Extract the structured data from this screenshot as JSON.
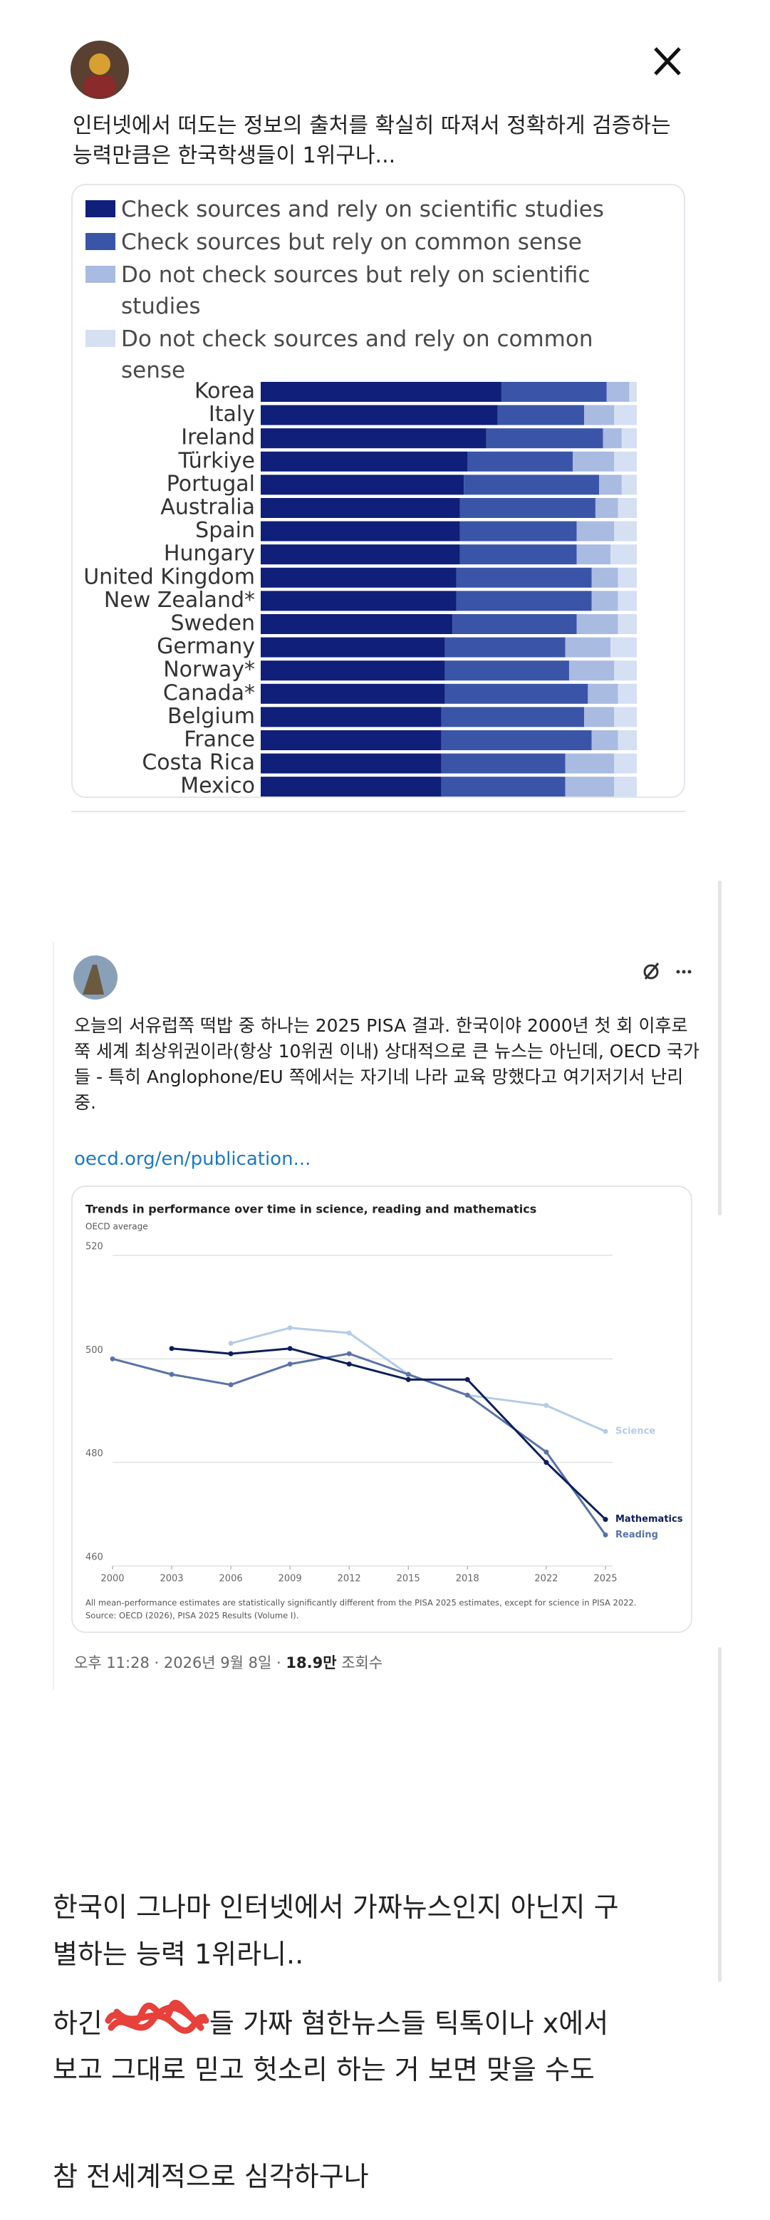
{
  "post1": {
    "text": "인터넷에서 떠도는 정보의 출처를 확실히 따져서 정확하게 검증하는 능력만큼은 한국학생들이 1위구나..."
  },
  "post2": {
    "text": "오늘의 서유럽쪽 떡밥 중 하나는 2025 PISA 결과. 한국이야 2000년 첫 회 이후로 쭉 세계 최상위권이라(항상 10위권 이내) 상대적으로 큰 뉴스는 아닌데, OECD 국가들 - 특히 Anglophone/EU 쪽에서는 자기네 나라 교육 망했다고 여기저기서 난리중.",
    "link": "oecd.org/en/publication...",
    "meta": {
      "datetime": "오후 11:28 · 2026년 9월 8일 ·",
      "views": "18.9만",
      "views_label": "조회수"
    }
  },
  "body": {
    "p1": [
      "한국이 그나마 인터넷에서 가짜뉴스인지 아닌지 구",
      "별하는 능력 1위라니.."
    ],
    "p2a": "하긴",
    "p2b": "들 가짜 혐한뉴스들 틱톡이나 x에서",
    "p2c": "보고 그대로 믿고 헛소리 하는 거 보면 맞을 수도",
    "p3": "참 전세계적으로 심각하구나"
  },
  "chart_data": [
    {
      "type": "hbar_stacked",
      "categories": [
        "Korea",
        "Italy",
        "Ireland",
        "Türkiye",
        "Portugal",
        "Australia",
        "Spain",
        "Hungary",
        "United Kingdom",
        "New Zealand*",
        "Sweden",
        "Germany",
        "Norway*",
        "Canada*",
        "Belgium",
        "France",
        "Costa Rica",
        "Mexico"
      ],
      "xlim": [
        0,
        100
      ],
      "series": [
        {
          "name": "Check sources and rely on scientific studies",
          "color": "#0f1f7a",
          "values": [
            64,
            63,
            60,
            55,
            54,
            53,
            53,
            53,
            52,
            52,
            51,
            49,
            49,
            49,
            48,
            48,
            48,
            48
          ]
        },
        {
          "name": "Check sources but rely on common sense",
          "color": "#3a55a8",
          "values": [
            28,
            23,
            31,
            28,
            36,
            36,
            31,
            31,
            36,
            36,
            33,
            32,
            33,
            38,
            38,
            40,
            33,
            33
          ]
        },
        {
          "name": "Do not check sources but rely on scientific studies",
          "color": "#a9bbe0",
          "values": [
            6,
            8,
            5,
            11,
            6,
            6,
            10,
            9,
            7,
            7,
            11,
            12,
            12,
            8,
            8,
            7,
            13,
            13
          ]
        },
        {
          "name": "Do not check sources and rely on common sense",
          "color": "#d5e0f3",
          "values": [
            2,
            6,
            4,
            6,
            4,
            5,
            6,
            7,
            5,
            5,
            5,
            7,
            6,
            5,
            6,
            5,
            6,
            6
          ]
        }
      ]
    },
    {
      "type": "line",
      "title": "Trends in performance over time in science, reading and mathematics",
      "subtitle": "OECD average",
      "x": [
        2000,
        2003,
        2006,
        2009,
        2012,
        2015,
        2018,
        2022,
        2025
      ],
      "xlim": [
        2000,
        2025
      ],
      "xticks": [
        2000,
        2003,
        2006,
        2009,
        2012,
        2015,
        2018,
        2022,
        2025
      ],
      "ylim": [
        460,
        520
      ],
      "yticks": [
        460,
        480,
        500,
        520
      ],
      "grid": true,
      "series": [
        {
          "name": "Science",
          "color": "#b5cce8",
          "values": [
            null,
            null,
            503,
            506,
            505,
            497,
            493,
            491,
            486
          ]
        },
        {
          "name": "Reading",
          "color": "#5b73a8",
          "values": [
            500,
            497,
            495,
            499,
            501,
            497,
            493,
            482,
            466
          ]
        },
        {
          "name": "Mathematics",
          "color": "#0d1f5c",
          "values": [
            null,
            502,
            501,
            502,
            499,
            496,
            496,
            480,
            469
          ]
        }
      ],
      "footnote": "All mean-performance estimates are statistically significantly different from the PISA 2025 estimates, except for science in PISA 2022.",
      "source": "Source: OECD (2026), PISA 2025 Results (Volume I)."
    }
  ]
}
